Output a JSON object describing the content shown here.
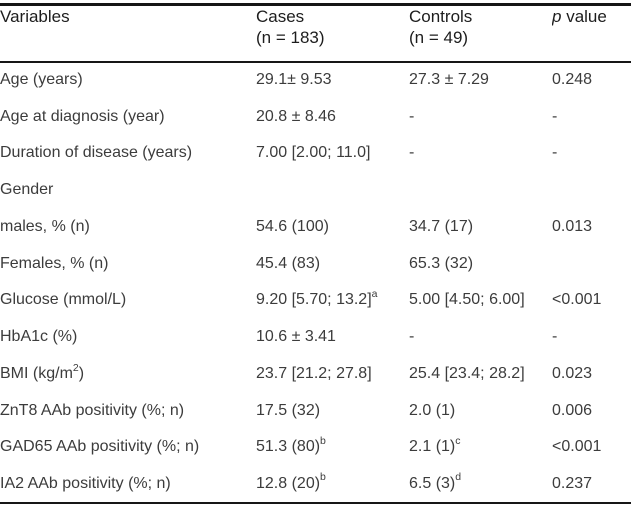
{
  "colors": {
    "background": "#ffffff",
    "body_text": "#3c3c3c",
    "header_text": "#1d1d1d",
    "rule": "#161616"
  },
  "table": {
    "header": {
      "variables": "Variables",
      "cases_line1": "Cases",
      "cases_line2": "(n = 183)",
      "controls_line1": "Controls",
      "controls_line2": "(n = 49)",
      "p_italic": "p",
      "p_rest": " value"
    },
    "rows": [
      {
        "variable": "Age (years)",
        "cases": "29.1± 9.53",
        "controls": "27.3 ± 7.29",
        "p": "0.248"
      },
      {
        "variable": "Age at diagnosis (year)",
        "cases": "20.8 ± 8.46",
        "controls": "-",
        "p": "-"
      },
      {
        "variable": "Duration of disease (years)",
        "cases": "7.00 [2.00; 11.0]",
        "controls": "-",
        "p": "-"
      },
      {
        "variable": "Gender",
        "cases": "",
        "controls": "",
        "p": ""
      },
      {
        "variable": "males, % (n)",
        "indent": true,
        "cases": "54.6 (100)",
        "controls": "34.7 (17)",
        "p": "0.013"
      },
      {
        "variable": "Females, % (n)",
        "indent": true,
        "cases": "45.4 (83)",
        "controls": "65.3 (32)",
        "p": ""
      },
      {
        "variable": "Glucose (mmol/L)",
        "cases": "9.20 [5.70; 13.2]",
        "cases_sup": "a",
        "controls": "5.00 [4.50; 6.00]",
        "p": "<0.001"
      },
      {
        "variable": "HbA1c (%)",
        "cases": "10.6 ± 3.41",
        "controls": "-",
        "p": "-"
      },
      {
        "variable": "BMI (kg/m",
        "variable_sup": "2",
        "variable_after": ")",
        "cases": "23.7 [21.2; 27.8]",
        "controls": "25.4 [23.4; 28.2]",
        "p": "0.023"
      },
      {
        "variable": "ZnT8 AAb positivity (%; n)",
        "cases": "17.5 (32)",
        "controls": "2.0 (1)",
        "p": "0.006"
      },
      {
        "variable": "GAD65 AAb positivity (%; n)",
        "cases": "51.3 (80)",
        "cases_sup": "b",
        "controls": "2.1 (1)",
        "controls_sup": "c",
        "p": "<0.001"
      },
      {
        "variable": "IA2 AAb positivity (%; n)",
        "cases": "12.8 (20)",
        "cases_sup": "b",
        "controls": "6.5 (3)",
        "controls_sup": "d",
        "p": "0.237"
      }
    ]
  }
}
